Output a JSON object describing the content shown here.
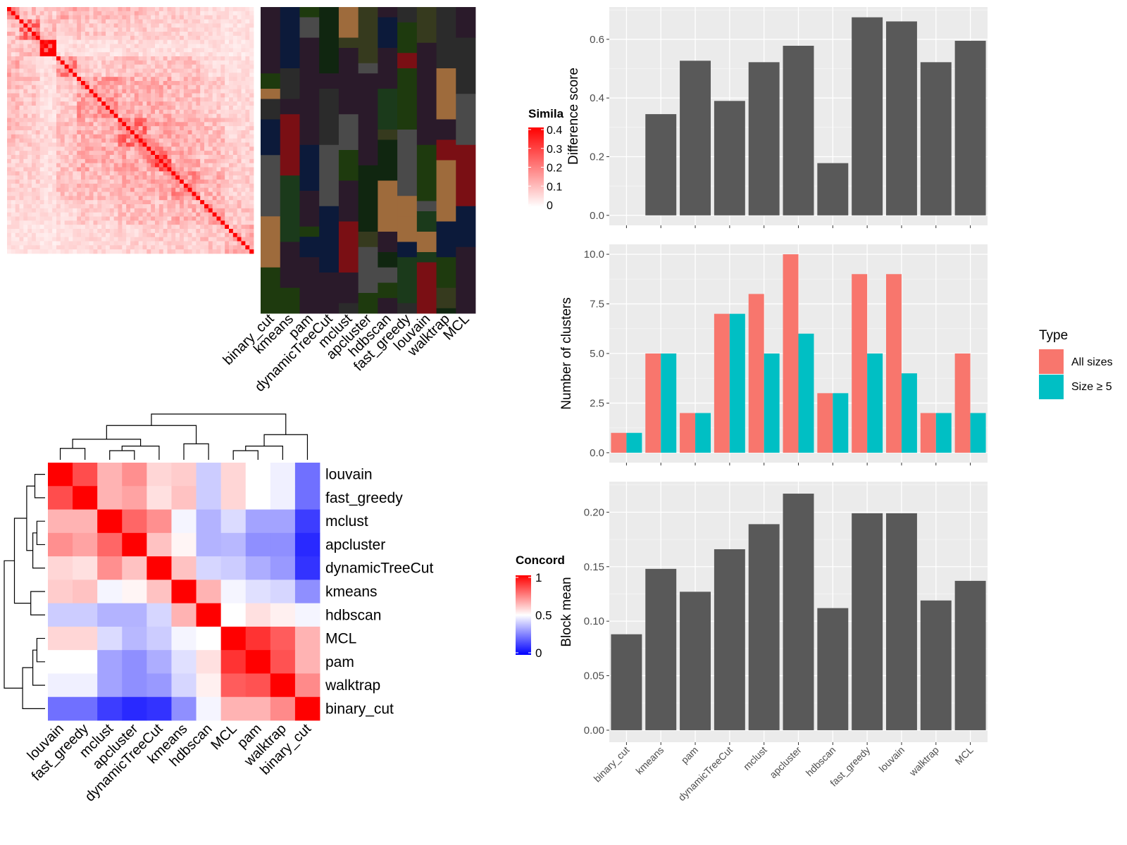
{
  "chart_data": [
    {
      "type": "heatmap",
      "panel": "similarity-heatmap",
      "legend_title": "Simila",
      "legend_ticks": [
        "0.4",
        "0.3",
        "0.2",
        "0.1",
        "0"
      ],
      "legend_tick_values": [
        0.4,
        0.3,
        0.2,
        0.1,
        0
      ],
      "color_low": "#ffffff",
      "color_high": "#ff0000",
      "n_rows": 60,
      "block_boundaries": [
        0.05,
        0.13,
        0.2,
        0.29,
        0.45,
        0.57,
        0.66,
        0.78,
        0.89,
        1.0
      ],
      "block_values": [
        [
          0.3,
          0.1,
          0.08,
          0.12,
          0.1,
          0.1,
          0.08,
          0.08,
          0.06,
          0.05
        ],
        [
          0.1,
          0.22,
          0.1,
          0.08,
          0.09,
          0.08,
          0.07,
          0.07,
          0.06,
          0.05
        ],
        [
          0.08,
          0.1,
          0.4,
          0.06,
          0.05,
          0.06,
          0.05,
          0.05,
          0.05,
          0.04
        ],
        [
          0.12,
          0.08,
          0.06,
          0.18,
          0.08,
          0.1,
          0.09,
          0.09,
          0.06,
          0.05
        ],
        [
          0.1,
          0.09,
          0.05,
          0.08,
          0.15,
          0.12,
          0.12,
          0.1,
          0.08,
          0.06
        ],
        [
          0.1,
          0.08,
          0.06,
          0.1,
          0.12,
          0.2,
          0.14,
          0.12,
          0.1,
          0.07
        ],
        [
          0.08,
          0.07,
          0.05,
          0.09,
          0.12,
          0.14,
          0.24,
          0.13,
          0.1,
          0.08
        ],
        [
          0.08,
          0.07,
          0.05,
          0.09,
          0.1,
          0.12,
          0.13,
          0.16,
          0.12,
          0.08
        ],
        [
          0.06,
          0.06,
          0.05,
          0.06,
          0.08,
          0.1,
          0.1,
          0.12,
          0.14,
          0.09
        ],
        [
          0.05,
          0.05,
          0.04,
          0.05,
          0.06,
          0.07,
          0.08,
          0.08,
          0.09,
          0.12
        ]
      ],
      "diagonal_value": 0.45
    },
    {
      "type": "heatmap",
      "panel": "cluster-membership",
      "columns": [
        "binary_cut",
        "kmeans",
        "pam",
        "dynamicTreeCut",
        "mclust",
        "apcluster",
        "hdbscan",
        "fast_greedy",
        "louvain",
        "walktrap",
        "MCL"
      ],
      "background_color": "#2a1a2a",
      "membership_colors": [
        "#102610",
        "#1e3a0e",
        "#9e6b3c",
        "#7a0f14",
        "#0c1a3a",
        "#2b2b2b",
        "#363a1e",
        "#4a4a4a",
        "#1b3a1b"
      ]
    },
    {
      "type": "heatmap",
      "panel": "concordance-heatmap",
      "legend_title": "Concord",
      "legend_ticks": [
        "1",
        "0.5",
        "0"
      ],
      "legend_tick_values": [
        1,
        0.5,
        0
      ],
      "color_low": "#0000ff",
      "color_mid": "#ffffff",
      "color_high": "#ff0000",
      "rows": [
        "louvain",
        "fast_greedy",
        "mclust",
        "apcluster",
        "dynamicTreeCut",
        "kmeans",
        "hdbscan",
        "MCL",
        "pam",
        "walktrap",
        "binary_cut"
      ],
      "cols": [
        "louvain",
        "fast_greedy",
        "mclust",
        "apcluster",
        "dynamicTreeCut",
        "kmeans",
        "hdbscan",
        "MCL",
        "pam",
        "walktrap",
        "binary_cut"
      ],
      "values": [
        [
          1.0,
          0.85,
          0.65,
          0.72,
          0.58,
          0.6,
          0.4,
          0.58,
          0.5,
          0.47,
          0.22
        ],
        [
          0.85,
          1.0,
          0.65,
          0.68,
          0.56,
          0.62,
          0.4,
          0.58,
          0.5,
          0.47,
          0.22
        ],
        [
          0.65,
          0.65,
          1.0,
          0.8,
          0.72,
          0.48,
          0.35,
          0.43,
          0.32,
          0.32,
          0.12
        ],
        [
          0.72,
          0.68,
          0.8,
          1.0,
          0.62,
          0.52,
          0.35,
          0.36,
          0.28,
          0.28,
          0.08
        ],
        [
          0.58,
          0.56,
          0.72,
          0.62,
          1.0,
          0.62,
          0.42,
          0.4,
          0.34,
          0.3,
          0.1
        ],
        [
          0.6,
          0.62,
          0.48,
          0.52,
          0.62,
          1.0,
          0.65,
          0.48,
          0.44,
          0.42,
          0.28
        ],
        [
          0.4,
          0.4,
          0.35,
          0.35,
          0.42,
          0.65,
          1.0,
          0.5,
          0.56,
          0.53,
          0.48
        ],
        [
          0.58,
          0.58,
          0.43,
          0.36,
          0.4,
          0.48,
          0.5,
          1.0,
          0.9,
          0.82,
          0.65
        ],
        [
          0.5,
          0.5,
          0.32,
          0.28,
          0.34,
          0.44,
          0.56,
          0.9,
          1.0,
          0.84,
          0.65
        ],
        [
          0.47,
          0.47,
          0.32,
          0.28,
          0.3,
          0.42,
          0.53,
          0.82,
          0.84,
          1.0,
          0.73
        ],
        [
          0.22,
          0.22,
          0.12,
          0.08,
          0.1,
          0.28,
          0.48,
          0.65,
          0.65,
          0.73,
          1.0
        ]
      ],
      "dendrogram": "hierarchical clustering on rows and columns"
    },
    {
      "type": "bar",
      "panel": "difference-score",
      "ylabel": "Difference score",
      "categories": [
        "binary_cut",
        "kmeans",
        "pam",
        "dynamicTreeCut",
        "mclust",
        "apcluster",
        "hdbscan",
        "fast_greedy",
        "louvain",
        "walktrap",
        "MCL"
      ],
      "values": [
        0.0,
        0.345,
        0.527,
        0.39,
        0.522,
        0.578,
        0.178,
        0.675,
        0.661,
        0.522,
        0.595
      ],
      "ylim": [
        -0.034,
        0.71
      ],
      "yticks": [
        "0.0",
        "0.2",
        "0.4",
        "0.6"
      ],
      "ytick_values": [
        0,
        0.2,
        0.4,
        0.6
      ],
      "grid": true
    },
    {
      "type": "bar",
      "panel": "number-of-clusters",
      "ylabel": "Number of clusters",
      "categories": [
        "binary_cut",
        "kmeans",
        "pam",
        "dynamicTreeCut",
        "mclust",
        "apcluster",
        "hdbscan",
        "fast_greedy",
        "louvain",
        "walktrap",
        "MCL"
      ],
      "series": [
        {
          "name": "All sizes",
          "color": "#F8766D",
          "values": [
            1,
            5,
            2,
            7,
            8,
            10,
            3,
            9,
            9,
            2,
            5
          ]
        },
        {
          "name": "Size ≥ 5",
          "color": "#00BFC4",
          "values": [
            1,
            5,
            2,
            7,
            5,
            6,
            3,
            5,
            4,
            2,
            2
          ]
        }
      ],
      "ylim": [
        -0.5,
        10.5
      ],
      "yticks": [
        "0.0",
        "2.5",
        "5.0",
        "7.5",
        "10.0"
      ],
      "ytick_values": [
        0,
        2.5,
        5,
        7.5,
        10
      ],
      "legend_title": "Type",
      "legend_position": "right",
      "grid": true
    },
    {
      "type": "bar",
      "panel": "block-mean",
      "ylabel": "Block mean",
      "categories": [
        "binary_cut",
        "kmeans",
        "pam",
        "dynamicTreeCut",
        "mclust",
        "apcluster",
        "hdbscan",
        "fast_greedy",
        "louvain",
        "walktrap",
        "MCL"
      ],
      "values": [
        0.088,
        0.148,
        0.127,
        0.166,
        0.189,
        0.217,
        0.112,
        0.199,
        0.199,
        0.119,
        0.137
      ],
      "ylim": [
        -0.011,
        0.228
      ],
      "yticks": [
        "0.00",
        "0.05",
        "0.10",
        "0.15",
        "0.20"
      ],
      "ytick_values": [
        0,
        0.05,
        0.1,
        0.15,
        0.2
      ],
      "grid": true
    }
  ]
}
